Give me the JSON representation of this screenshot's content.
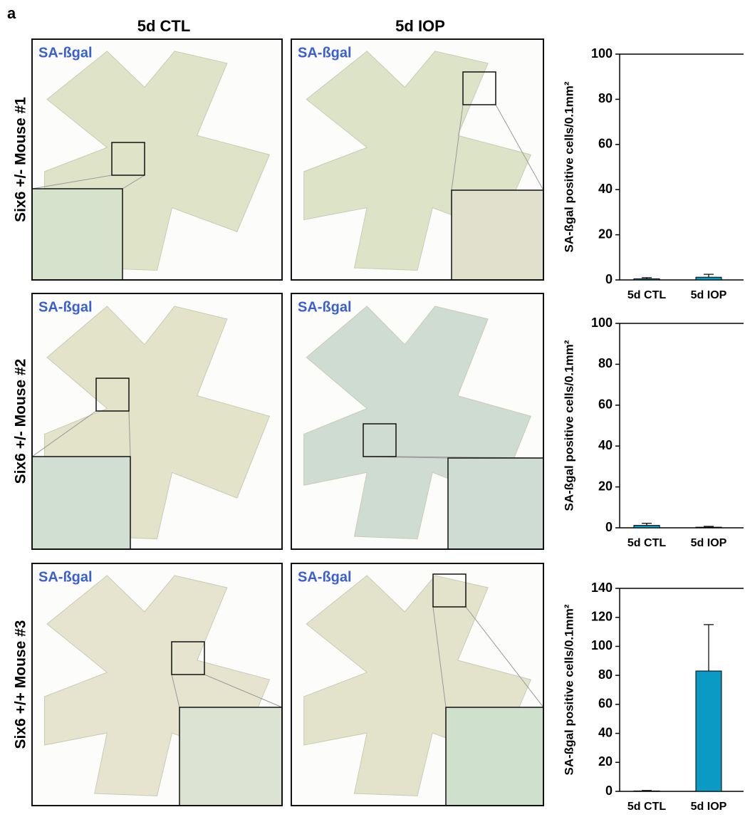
{
  "figure": {
    "panel_label": "a",
    "columns": [
      "5d CTL",
      "5d IOP"
    ],
    "rows": [
      "Six6 +/- Mouse #1",
      "Six6 +/- Mouse #2",
      "Six6 +/+ Mouse #3"
    ],
    "image_labels": [
      [
        "SA-ßgal",
        "SA-ßgal"
      ],
      [
        "SA-ßgal",
        "SA-ßgal"
      ],
      [
        "SA-ßgal",
        "SA-ßgal"
      ]
    ]
  },
  "chart_data": [
    {
      "type": "bar",
      "y_label": "SA-ßgal positive cells/0.1mm²",
      "categories": [
        "5d CTL",
        "5d IOP"
      ],
      "values": [
        0.5,
        1.2
      ],
      "errors": [
        0.5,
        1.3
      ],
      "color": "#0a9ac4",
      "ylim": [
        0,
        100
      ],
      "yticks": [
        0,
        20,
        40,
        60,
        80,
        100
      ]
    },
    {
      "type": "bar",
      "y_label": "SA-ßgal positive cells/0.1mm²",
      "categories": [
        "5d CTL",
        "5d IOP"
      ],
      "values": [
        1.2,
        0.3
      ],
      "errors": [
        1.0,
        0.4
      ],
      "color": "#0a9ac4",
      "ylim": [
        0,
        100
      ],
      "yticks": [
        0,
        20,
        40,
        60,
        80,
        100
      ]
    },
    {
      "type": "bar",
      "y_label": "SA-ßgal positive cells/0.1mm²",
      "categories": [
        "5d CTL",
        "5d IOP"
      ],
      "values": [
        0.3,
        83
      ],
      "errors": [
        0.3,
        32
      ],
      "color": "#0a9ac4",
      "ylim": [
        0,
        140
      ],
      "yticks": [
        0,
        20,
        40,
        60,
        80,
        100,
        120,
        140
      ]
    }
  ]
}
